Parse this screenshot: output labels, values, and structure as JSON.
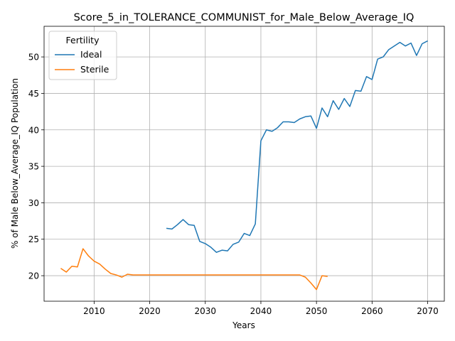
{
  "chart_data": {
    "type": "line",
    "title": "Score_5_in_TOLERANCE_COMMUNIST_for_Male_Below_Average_IQ",
    "xlabel": "Years",
    "ylabel": "% of Male Below_Average_IQ Population",
    "xlim": [
      2001,
      2073
    ],
    "ylim": [
      16.5,
      54.2
    ],
    "xticks": [
      2010,
      2020,
      2030,
      2040,
      2050,
      2060,
      2070
    ],
    "yticks": [
      20,
      25,
      30,
      35,
      40,
      45,
      50
    ],
    "grid": true,
    "legend": {
      "title": "Fertility",
      "placement": "top-left"
    },
    "series": [
      {
        "name": "Ideal",
        "color": "#1f77b4",
        "x": [
          2023,
          2024,
          2025,
          2026,
          2027,
          2028,
          2029,
          2030,
          2031,
          2032,
          2033,
          2034,
          2035,
          2036,
          2037,
          2038,
          2039,
          2040,
          2041,
          2042,
          2043,
          2044,
          2045,
          2046,
          2047,
          2048,
          2049,
          2050,
          2051,
          2052,
          2053,
          2054,
          2055,
          2056,
          2057,
          2058,
          2059,
          2060,
          2061,
          2062,
          2063,
          2064,
          2065,
          2066,
          2067,
          2068,
          2069,
          2070
        ],
        "y": [
          26.5,
          26.4,
          27.0,
          27.7,
          27.0,
          26.9,
          24.7,
          24.4,
          23.9,
          23.2,
          23.5,
          23.4,
          24.3,
          24.6,
          25.8,
          25.5,
          27.1,
          38.5,
          40.0,
          39.8,
          40.3,
          41.1,
          41.1,
          41.0,
          41.5,
          41.8,
          41.9,
          40.2,
          43.0,
          41.8,
          44.0,
          42.8,
          44.3,
          43.2,
          45.4,
          45.3,
          47.3,
          46.9,
          49.7,
          50.0,
          51.0,
          51.5,
          52.0,
          51.5,
          51.9,
          50.2,
          51.8,
          52.2
        ]
      },
      {
        "name": "Sterile",
        "color": "#ff7f0e",
        "x": [
          2004,
          2005,
          2006,
          2007,
          2008,
          2009,
          2010,
          2011,
          2012,
          2013,
          2014,
          2015,
          2016,
          2017,
          2018,
          2019,
          2020,
          2021,
          2022,
          2023,
          2024,
          2025,
          2026,
          2027,
          2028,
          2029,
          2030,
          2031,
          2032,
          2033,
          2034,
          2035,
          2036,
          2037,
          2038,
          2039,
          2040,
          2041,
          2042,
          2043,
          2044,
          2045,
          2046,
          2047,
          2048,
          2049,
          2050,
          2051,
          2052
        ],
        "y": [
          21.0,
          20.5,
          21.3,
          21.2,
          23.7,
          22.7,
          22.0,
          21.6,
          20.9,
          20.3,
          20.1,
          19.8,
          20.2,
          20.1,
          20.1,
          20.1,
          20.1,
          20.1,
          20.1,
          20.1,
          20.1,
          20.1,
          20.1,
          20.1,
          20.1,
          20.1,
          20.1,
          20.1,
          20.1,
          20.1,
          20.1,
          20.1,
          20.1,
          20.1,
          20.1,
          20.1,
          20.1,
          20.1,
          20.1,
          20.1,
          20.1,
          20.1,
          20.1,
          20.1,
          19.8,
          19.0,
          18.1,
          20.0,
          19.9
        ]
      }
    ]
  }
}
